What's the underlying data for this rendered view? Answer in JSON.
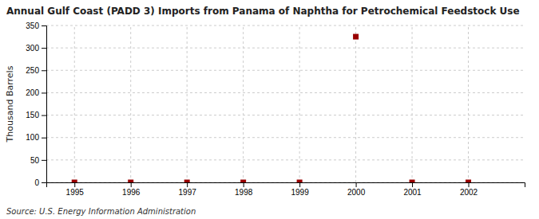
{
  "chart_data": {
    "type": "scatter",
    "title": "Annual Gulf Coast (PADD 3) Imports from Panama of Naphtha for Petrochemical Feedstock Use",
    "ylabel": "Thousand Barrels",
    "annotations": [
      "Source: U.S. Energy Information Administration"
    ],
    "x": [
      1995,
      1996,
      1997,
      1998,
      1999,
      2000,
      2001,
      2002
    ],
    "values": [
      0,
      0,
      0,
      0,
      0,
      325,
      0,
      0
    ],
    "color": "#990000",
    "marker": "square",
    "xlim": [
      1994.5,
      2003.0
    ],
    "ylim": [
      0,
      350
    ],
    "xticks": [
      1995,
      1996,
      1997,
      1998,
      1999,
      2000,
      2001,
      2002
    ],
    "yticks": [
      0,
      50,
      100,
      150,
      200,
      250,
      300,
      350
    ],
    "grid": true
  }
}
